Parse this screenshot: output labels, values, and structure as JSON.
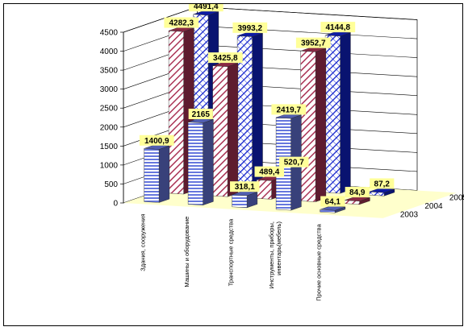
{
  "chart_data": {
    "type": "bar",
    "variant": "3d-clustered-columns-depth",
    "title": "",
    "xlabel": "",
    "ylabel": "",
    "ylim": [
      0,
      4500
    ],
    "yticks": [
      "0",
      "500",
      "1000",
      "1500",
      "2000",
      "2500",
      "3000",
      "3500",
      "4000",
      "4500"
    ],
    "grid": true,
    "categories": [
      "Здания, сооружения",
      "Машины и оборудование",
      "Транспортные средства",
      "Инструменты, приборы, инвентарь(мебель)",
      "Прочие основные средства"
    ],
    "series": [
      {
        "name": "2003",
        "values": [
          1400.9,
          2165,
          318.1,
          2419.7,
          64.1
        ],
        "labels": [
          "1400,9",
          "2165",
          "318,1",
          "2419,7",
          "64,1"
        ],
        "color": "#6677dd",
        "pattern": "horizontal-lines"
      },
      {
        "name": "2004",
        "values": [
          4282.3,
          3425.8,
          489.4,
          3952.7,
          84.9
        ],
        "labels": [
          "4282,3",
          "3425,8",
          "489,4",
          "3952,7",
          "84,9"
        ],
        "color": "#aa3355",
        "pattern": "diagonal-lines"
      },
      {
        "name": "2005",
        "values": [
          4491.4,
          3993.2,
          520.7,
          4144.8,
          87.2
        ],
        "labels": [
          "4491,4",
          "3993,2",
          "520,7",
          "4144,8",
          "87,2"
        ],
        "color": "#1122cc",
        "pattern": "diagonal-cross"
      }
    ]
  }
}
